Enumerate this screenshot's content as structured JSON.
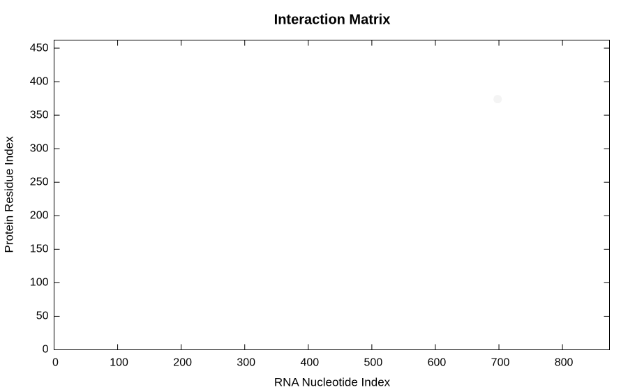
{
  "chart_data": {
    "type": "scatter",
    "title": "Interaction Matrix",
    "x_label": "RNA Nucleotide Index",
    "y_label": "Protein Residue Index",
    "x": [
      698
    ],
    "values": [
      374
    ],
    "color": "#f4f4f4",
    "xlim": [
      0,
      874
    ],
    "ylim": [
      0,
      462
    ],
    "xticks": [
      0,
      100,
      200,
      300,
      400,
      500,
      600,
      700,
      800
    ],
    "yticks": [
      0,
      50,
      100,
      150,
      200,
      250,
      300,
      350,
      400,
      450
    ],
    "grid": false
  }
}
